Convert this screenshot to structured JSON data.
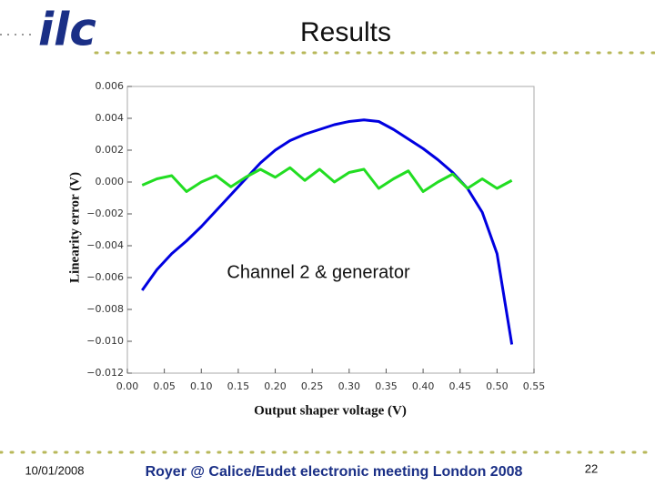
{
  "slide": {
    "logo": "ilc",
    "title": "Results",
    "date": "10/01/2008",
    "footer": "Royer @ Calice/Eudet electronic meeting London 2008",
    "page": "22"
  },
  "chart_data": {
    "type": "line",
    "x_label": "Output shaper voltage (V)",
    "y_label": "Linearity error (V)",
    "annotation": "Channel 2 & generator",
    "x": [
      0.02,
      0.04,
      0.06,
      0.08,
      0.1,
      0.12,
      0.14,
      0.16,
      0.18,
      0.2,
      0.22,
      0.24,
      0.26,
      0.28,
      0.3,
      0.32,
      0.34,
      0.36,
      0.38,
      0.4,
      0.42,
      0.44,
      0.46,
      0.48,
      0.5,
      0.52
    ],
    "series": [
      {
        "color": "#0000e0",
        "values": [
          -0.0068,
          -0.0055,
          -0.0045,
          -0.0037,
          -0.0028,
          -0.0018,
          -0.0008,
          0.0002,
          0.0012,
          0.002,
          0.0026,
          0.003,
          0.0033,
          0.0036,
          0.0038,
          0.0039,
          0.0038,
          0.0033,
          0.0027,
          0.0021,
          0.0014,
          0.0006,
          -0.0004,
          -0.0019,
          -0.0045,
          -0.0102
        ]
      },
      {
        "color": "#22dd22",
        "values": [
          -0.0002,
          0.0002,
          0.0004,
          -0.0006,
          0.0,
          0.0004,
          -0.0003,
          0.0003,
          0.0008,
          0.0003,
          0.0009,
          0.0001,
          0.0008,
          0.0,
          0.0006,
          0.0008,
          -0.0004,
          0.0002,
          0.0007,
          -0.0006,
          0.0,
          0.0005,
          -0.0004,
          0.0002,
          -0.0004,
          0.0001
        ]
      }
    ],
    "xlim": [
      0,
      0.55
    ],
    "ylim": [
      -0.012,
      0.006
    ],
    "xticks": [
      {
        "value": 0,
        "label": "0.00"
      },
      {
        "value": 0.05,
        "label": "0.05"
      },
      {
        "value": 0.1,
        "label": "0.10"
      },
      {
        "value": 0.15,
        "label": "0.15"
      },
      {
        "value": 0.2,
        "label": "0.20"
      },
      {
        "value": 0.25,
        "label": "0.25"
      },
      {
        "value": 0.3,
        "label": "0.30"
      },
      {
        "value": 0.35,
        "label": "0.35"
      },
      {
        "value": 0.4,
        "label": "0.40"
      },
      {
        "value": 0.45,
        "label": "0.45"
      },
      {
        "value": 0.5,
        "label": "0.50"
      },
      {
        "value": 0.55,
        "label": "0.55"
      }
    ],
    "yticks": [
      {
        "value": 0.006,
        "label": "0.006"
      },
      {
        "value": 0.004,
        "label": "0.004"
      },
      {
        "value": 0.002,
        "label": "0.002"
      },
      {
        "value": 0,
        "label": "0.000"
      },
      {
        "value": -0.002,
        "label": "−0.002"
      },
      {
        "value": -0.004,
        "label": "−0.004"
      },
      {
        "value": -0.006,
        "label": "−0.006"
      },
      {
        "value": -0.008,
        "label": "−0.008"
      },
      {
        "value": -0.01,
        "label": "−0.010"
      },
      {
        "value": -0.012,
        "label": "−0.012"
      }
    ]
  }
}
